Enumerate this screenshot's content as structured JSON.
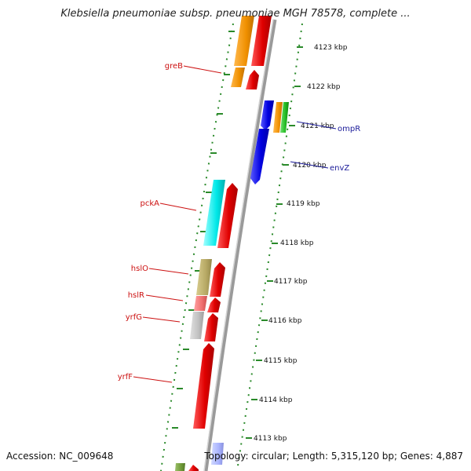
{
  "title": "Klebsiella pneumoniae subsp. pneumoniae MGH 78578, complete ...",
  "accession": "Accession: NC_009648",
  "summary": "Topology: circular; Length: 5,315,120 bp; Genes: 4,887",
  "colors": {
    "backbone": "#9a9a9a",
    "ruler_ticks": "#2a8a2a",
    "gene_forward": "#ee1111",
    "gene_reverse": "#1111ee",
    "label_red": "#cc1111",
    "label_blue": "#1a1a99"
  },
  "ruler": {
    "unit": "kbp",
    "ticks": [
      {
        "kbp": 4123,
        "label": "4123 kbp"
      },
      {
        "kbp": 4122,
        "label": "4122 kbp"
      },
      {
        "kbp": 4121,
        "label": "4121 kbp"
      },
      {
        "kbp": 4120,
        "label": "4120 kbp"
      },
      {
        "kbp": 4119,
        "label": "4119 kbp"
      },
      {
        "kbp": 4118,
        "label": "4118 kbp"
      },
      {
        "kbp": 4117,
        "label": "4117 kbp"
      },
      {
        "kbp": 4116,
        "label": "4116 kbp"
      },
      {
        "kbp": 4115,
        "label": "4115 kbp"
      },
      {
        "kbp": 4114,
        "label": "4114 kbp"
      },
      {
        "kbp": 4113,
        "label": "4113 kbp"
      }
    ]
  },
  "genes": [
    {
      "name": "greB",
      "strand": "+",
      "start_kbp": 4122.55,
      "end_kbp": 4122.0,
      "labeled": true
    },
    {
      "name": "ompR",
      "strand": "-",
      "start_kbp": 4121.55,
      "end_kbp": 4120.85,
      "labeled": true
    },
    {
      "name": "envZ",
      "strand": "-",
      "start_kbp": 4120.8,
      "end_kbp": 4119.45,
      "labeled": true
    },
    {
      "name": "pckA",
      "strand": "+",
      "start_kbp": 4119.55,
      "end_kbp": 4117.95,
      "labeled": true
    },
    {
      "name": "hslO",
      "strand": "+",
      "start_kbp": 4116.95,
      "end_kbp": 4116.4,
      "labeled": true
    },
    {
      "name": "hslR",
      "strand": "+",
      "start_kbp": 4116.6,
      "end_kbp": 4116.2,
      "labeled": true
    },
    {
      "name": "yrfG",
      "strand": "+",
      "start_kbp": 4116.2,
      "end_kbp": 4115.5,
      "labeled": true
    },
    {
      "name": "yrfF",
      "strand": "+",
      "start_kbp": 4115.45,
      "end_kbp": 4112.8,
      "labeled": true
    },
    {
      "name": "",
      "strand": "+",
      "start_kbp": 4124.0,
      "end_kbp": 4122.6,
      "labeled": false
    }
  ]
}
